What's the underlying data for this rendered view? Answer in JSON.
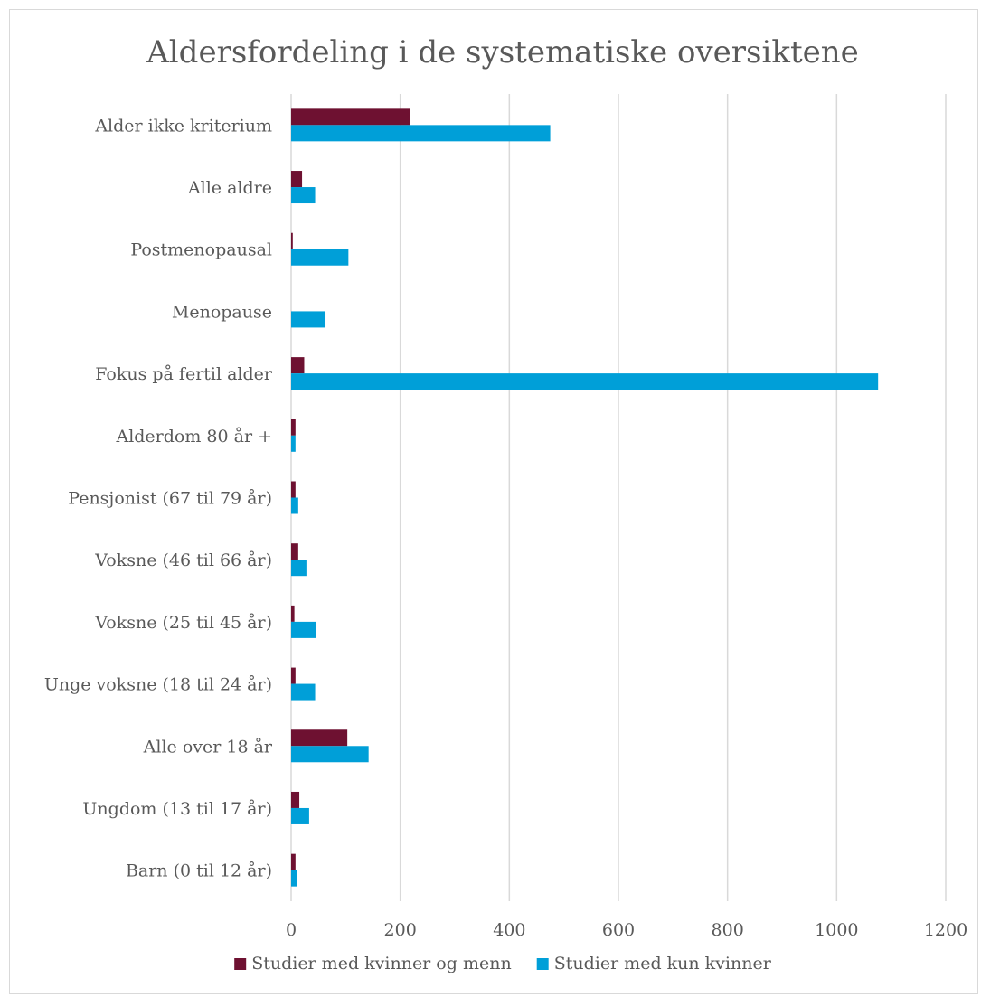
{
  "chart_data": {
    "type": "bar",
    "orientation": "horizontal",
    "title": "Aldersfordeling i de systematiske oversiktene",
    "xlabel": "",
    "ylabel": "",
    "xlim": [
      0,
      1200
    ],
    "x_ticks": [
      0,
      200,
      400,
      600,
      800,
      1000,
      1200
    ],
    "x_tick_labels": [
      "0",
      "200",
      "400",
      "600",
      "800",
      "1000",
      "1200"
    ],
    "grid": true,
    "legend_position": "bottom",
    "categories": [
      "Alder ikke kriterium",
      "Alle aldre",
      "Postmenopausal",
      "Menopause",
      "Fokus på fertil alder",
      "Alderdom 80 år +",
      "Pensjonist (67 til 79 år)",
      "Voksne (46 til 66 år)",
      "Voksne (25 til 45 år)",
      "Unge voksne (18 til 24 år)",
      "Alle over 18 år",
      "Ungdom (13 til 17 år)",
      "Barn (0 til 12 år)"
    ],
    "series": [
      {
        "name": "Studier med kvinner og menn",
        "color": "#6e1131",
        "values": [
          218,
          20,
          3,
          0,
          24,
          8,
          8,
          13,
          6,
          8,
          103,
          15,
          8
        ]
      },
      {
        "name": "Studier med kun kvinner",
        "color": "#009fd8",
        "values": [
          475,
          44,
          105,
          63,
          1076,
          8,
          13,
          28,
          46,
          44,
          142,
          33,
          10
        ]
      }
    ]
  }
}
